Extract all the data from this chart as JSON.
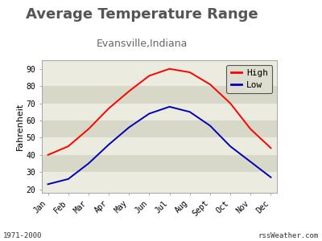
{
  "title": "Average Temperature Range",
  "subtitle": "Evansville,Indiana",
  "ylabel": "Fahrenheit",
  "months": [
    "Jan",
    "Feb",
    "Mar",
    "Apr",
    "May",
    "Jun",
    "Jul",
    "Aug",
    "Sept",
    "Oct",
    "Nov",
    "Dec"
  ],
  "high": [
    40,
    45,
    55,
    67,
    77,
    86,
    90,
    88,
    81,
    70,
    55,
    44
  ],
  "low": [
    23,
    26,
    35,
    46,
    56,
    64,
    68,
    65,
    57,
    45,
    36,
    27
  ],
  "high_color": "#ff0000",
  "low_color": "#0000bb",
  "ylim": [
    18,
    95
  ],
  "yticks": [
    20,
    30,
    40,
    50,
    60,
    70,
    80,
    90
  ],
  "fig_bg": "#ffffff",
  "plot_bg_light": "#ebebdf",
  "plot_bg_dark": "#d8d8c8",
  "legend_bg": "#deded0",
  "title_fontsize": 13,
  "subtitle_fontsize": 9,
  "tick_fontsize": 7,
  "ylabel_fontsize": 8,
  "footnote_fontsize": 6.5,
  "footnote_left": "1971-2000",
  "footnote_right": "rssWeather.com",
  "line_width": 1.4,
  "band_colors": [
    "#ebebdf",
    "#d8d8c8",
    "#ebebdf",
    "#d8d8c8",
    "#ebebdf",
    "#d8d8c8",
    "#ebebdf",
    "#d8d8c8"
  ]
}
